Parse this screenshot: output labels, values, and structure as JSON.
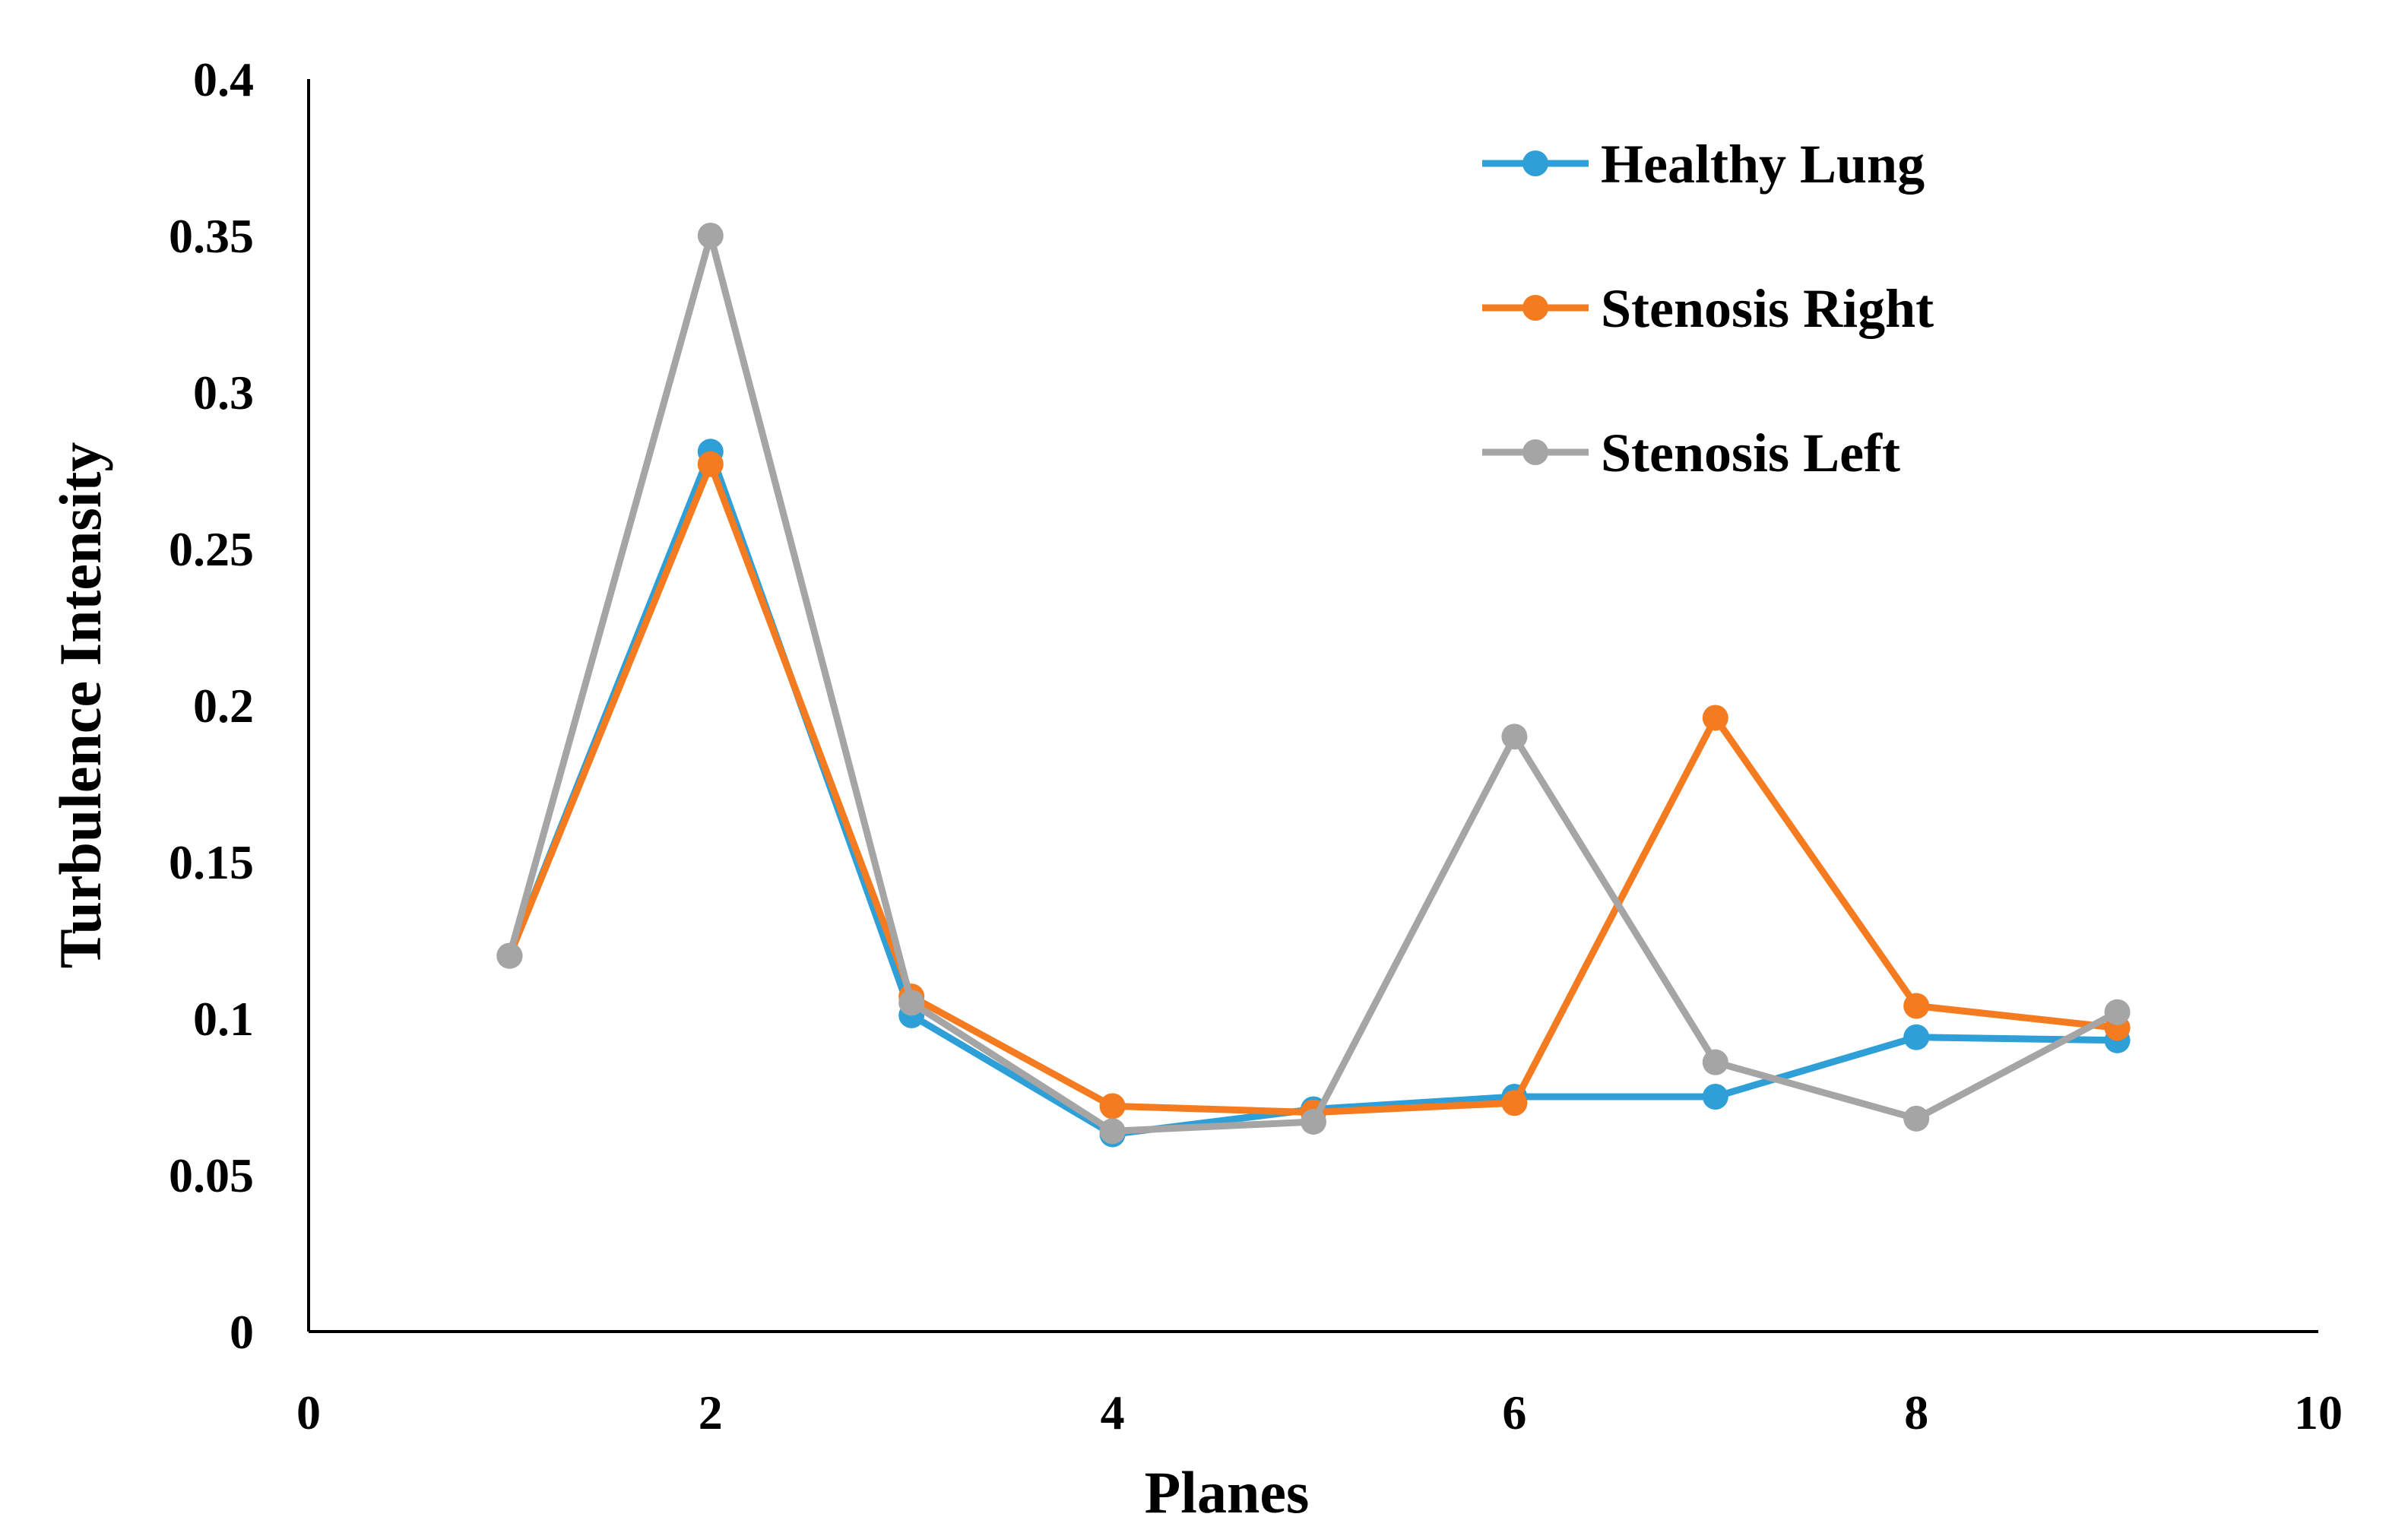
{
  "chart_data": {
    "type": "line",
    "title": "",
    "xlabel": "Planes",
    "ylabel": "Turbulence Intensity",
    "xlim": [
      0,
      10
    ],
    "ylim": [
      0,
      0.4
    ],
    "x_ticks": [
      0,
      2,
      4,
      6,
      8,
      10
    ],
    "x_tick_labels": [
      "0",
      "2",
      "4",
      "6",
      "8",
      "10"
    ],
    "y_ticks": [
      0,
      0.05,
      0.1,
      0.15,
      0.2,
      0.25,
      0.3,
      0.35,
      0.4
    ],
    "y_tick_labels": [
      "0",
      "0.05",
      "0.1",
      "0.15",
      "0.2",
      "0.25",
      "0.3",
      "0.35",
      "0.4"
    ],
    "grid": false,
    "legend_position": "top-right",
    "x": [
      1,
      2,
      3,
      4,
      5,
      6,
      7,
      8,
      9
    ],
    "series": [
      {
        "name": "Healthy Lung",
        "color": "#2f9fd8",
        "values": [
          0.12,
          0.281,
          0.101,
          0.063,
          0.071,
          0.075,
          0.075,
          0.094,
          0.093
        ]
      },
      {
        "name": "Stenosis Right",
        "color": "#f47b20",
        "values": [
          0.12,
          0.277,
          0.107,
          0.072,
          0.07,
          0.073,
          0.196,
          0.104,
          0.097
        ]
      },
      {
        "name": "Stenosis Left",
        "color": "#a5a5a5",
        "values": [
          0.12,
          0.35,
          0.105,
          0.064,
          0.067,
          0.19,
          0.086,
          0.068,
          0.102
        ]
      }
    ]
  }
}
